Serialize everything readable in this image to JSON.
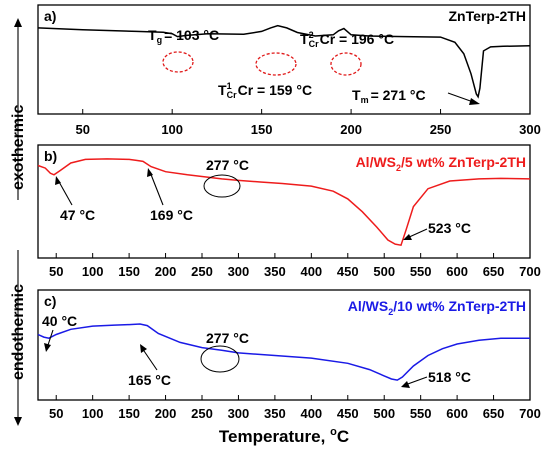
{
  "chart_data": [
    {
      "type": "line",
      "panel_label": "a)",
      "legend": "ZnTerp-2TH",
      "color": "#000000",
      "xlim": [
        25,
        300
      ],
      "x_ticks": [
        "50",
        "100",
        "150",
        "200",
        "250",
        "300"
      ],
      "series": [
        {
          "x": [
            25,
            50,
            80,
            95,
            100,
            103,
            108,
            120,
            140,
            150,
            155,
            159,
            164,
            170,
            180,
            190,
            193,
            196,
            200,
            210,
            230,
            250,
            258,
            263,
            267,
            270,
            271,
            272,
            274,
            278,
            285,
            300
          ],
          "y": [
            2.0,
            1.7,
            1.4,
            1.25,
            1.0,
            0.5,
            0.7,
            1.0,
            0.9,
            1.4,
            2.0,
            2.4,
            2.0,
            1.2,
            0.6,
            0.8,
            1.5,
            1.9,
            0.8,
            0.6,
            0.5,
            0.4,
            -0.5,
            -2.5,
            -6.0,
            -9.5,
            -10.0,
            -8.5,
            -2.0,
            -1.3,
            -1.2,
            -1.1
          ]
        }
      ],
      "annotations": [
        {
          "text": "T",
          "sub": "g",
          "value": "= 103 °C"
        },
        {
          "text": "T",
          "sup": "2",
          "sub": "Cr",
          "value": "Cr = 196 °C"
        },
        {
          "text": "T",
          "sup": "1",
          "sub": "Cr",
          "value": "Cr = 159 °C"
        },
        {
          "text": "T",
          "sub": "m",
          "value": "= 271 °C"
        }
      ]
    },
    {
      "type": "line",
      "panel_label": "b)",
      "legend": "Al/WS",
      "legend_sub": "2",
      "legend_rest": "/5 wt% ZnTerp-2TH",
      "color": "#ee1c1c",
      "xlim": [
        25,
        700
      ],
      "x_ticks": [
        "50",
        "100",
        "150",
        "200",
        "250",
        "300",
        "350",
        "400",
        "450",
        "500",
        "550",
        "600",
        "650",
        "700"
      ],
      "series": [
        {
          "x": [
            25,
            35,
            42,
            47,
            55,
            70,
            90,
            120,
            150,
            160,
            169,
            180,
            200,
            230,
            260,
            277,
            300,
            330,
            360,
            400,
            430,
            450,
            470,
            490,
            505,
            515,
            523,
            530,
            540,
            560,
            590,
            630,
            660,
            700
          ],
          "y": [
            0.0,
            -0.5,
            -1.5,
            -1.8,
            -1.0,
            0.5,
            1.2,
            1.3,
            1.2,
            1.0,
            0.8,
            -0.2,
            -1.2,
            -1.8,
            -2.3,
            -2.6,
            -2.9,
            -3.2,
            -3.5,
            -4.0,
            -5.0,
            -6.5,
            -9.0,
            -12.0,
            -14.5,
            -15.3,
            -15.5,
            -12.5,
            -8.0,
            -4.5,
            -3.0,
            -2.6,
            -2.5,
            -2.6
          ]
        }
      ],
      "annotations": [
        "47 °C",
        "169 °C",
        "277 °C",
        "523 °C"
      ]
    },
    {
      "type": "line",
      "panel_label": "c)",
      "legend": "Al/WS",
      "legend_sub": "2",
      "legend_rest": "/10 wt% ZnTerp-2TH",
      "color": "#1a1ae6",
      "xlim": [
        25,
        700
      ],
      "x_ticks": [
        "50",
        "100",
        "150",
        "200",
        "250",
        "300",
        "350",
        "400",
        "450",
        "500",
        "550",
        "600",
        "650",
        "700"
      ],
      "series": [
        {
          "x": [
            25,
            33,
            40,
            50,
            70,
            100,
            130,
            150,
            165,
            175,
            190,
            220,
            250,
            277,
            300,
            350,
            400,
            450,
            480,
            500,
            510,
            518,
            525,
            540,
            560,
            580,
            600,
            630,
            660,
            700
          ],
          "y": [
            -1.5,
            -2.0,
            -2.2,
            -1.5,
            -0.5,
            0.1,
            0.3,
            0.4,
            0.5,
            0.2,
            -1.3,
            -3.0,
            -4.0,
            -4.5,
            -5.0,
            -5.5,
            -6.0,
            -7.0,
            -8.2,
            -9.4,
            -10.0,
            -10.2,
            -9.6,
            -7.5,
            -5.5,
            -4.2,
            -3.3,
            -2.6,
            -2.2,
            -2.2
          ]
        }
      ],
      "annotations": [
        "40 °C",
        "165 °C",
        "277 °C",
        "518 °C"
      ]
    }
  ],
  "axis": {
    "xlabel": "Temperature, ",
    "xlabel_unit": "C",
    "xlabel_deg": "o",
    "ylabel_top": "exothermic",
    "ylabel_bottom": "endothermic"
  }
}
